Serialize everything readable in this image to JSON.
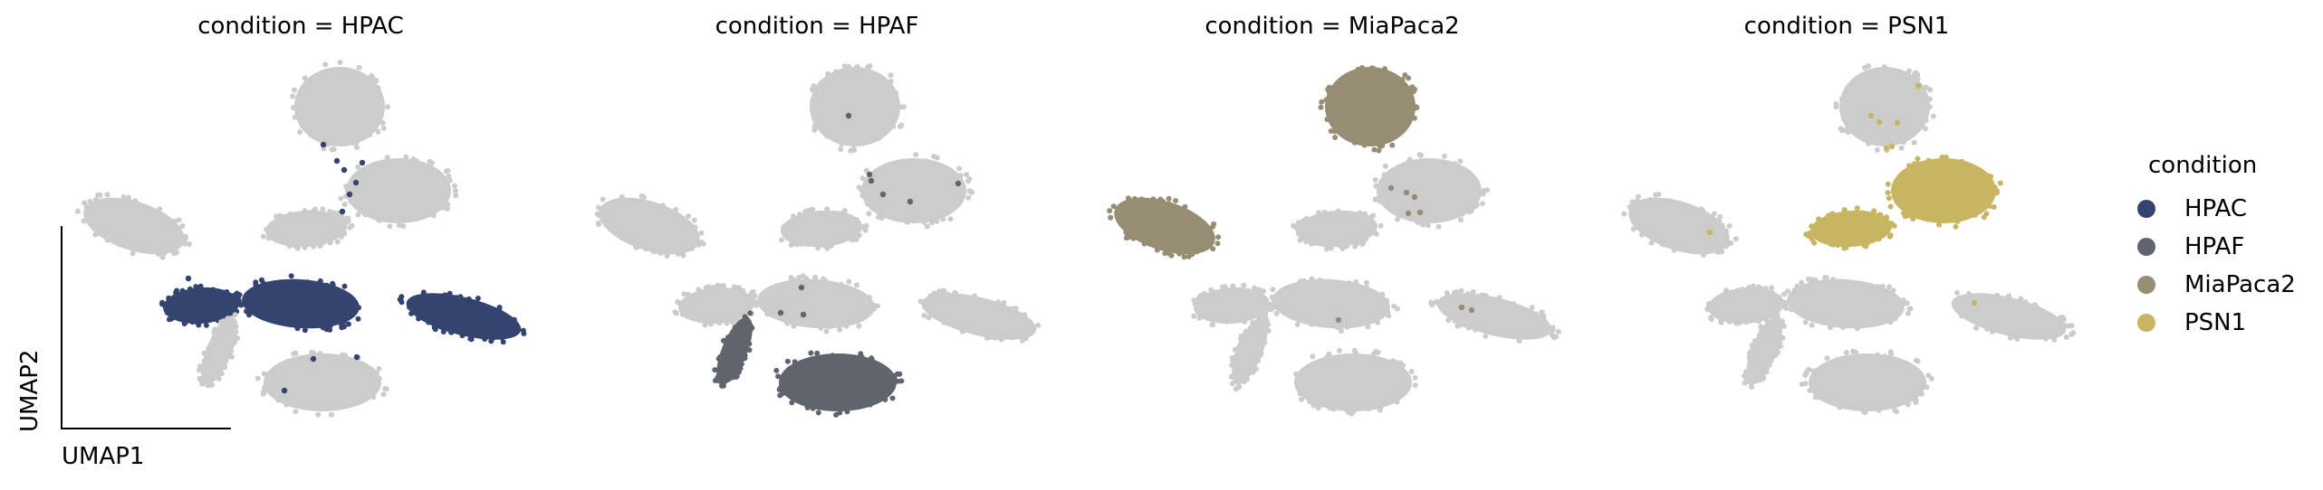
{
  "chart_data": {
    "type": "scatter",
    "xlabel": "UMAP1",
    "ylabel": "UMAP2",
    "legend": {
      "title": "condition",
      "placement": "right",
      "entries": [
        {
          "label": "HPAC",
          "color": "#344470"
        },
        {
          "label": "HPAF",
          "color": "#60646d"
        },
        {
          "label": "MiaPaca2",
          "color": "#978d74"
        },
        {
          "label": "PSN1",
          "color": "#c8b562"
        }
      ]
    },
    "background_color": "#cccccc",
    "panels": [
      {
        "title": "condition = HPAC",
        "highlight": "HPAC",
        "color": "#344470"
      },
      {
        "title": "condition = HPAF",
        "highlight": "HPAF",
        "color": "#60646d"
      },
      {
        "title": "condition = MiaPaca2",
        "highlight": "MiaPaca2",
        "color": "#978d74"
      },
      {
        "title": "condition = PSN1",
        "highlight": "PSN1",
        "color": "#c8b562"
      }
    ],
    "clusters": [
      {
        "id": "top",
        "dominant": "MiaPaca2"
      },
      {
        "id": "upper-right",
        "dominant": "PSN1"
      },
      {
        "id": "left-blob",
        "dominant": "MiaPaca2"
      },
      {
        "id": "small-mid",
        "dominant": "PSN1"
      },
      {
        "id": "band-left",
        "dominant": "HPAC"
      },
      {
        "id": "band-mid",
        "dominant": "HPAC"
      },
      {
        "id": "band-right",
        "dominant": "HPAC"
      },
      {
        "id": "streak",
        "dominant": "HPAF"
      },
      {
        "id": "bottom",
        "dominant": "HPAF"
      }
    ]
  }
}
